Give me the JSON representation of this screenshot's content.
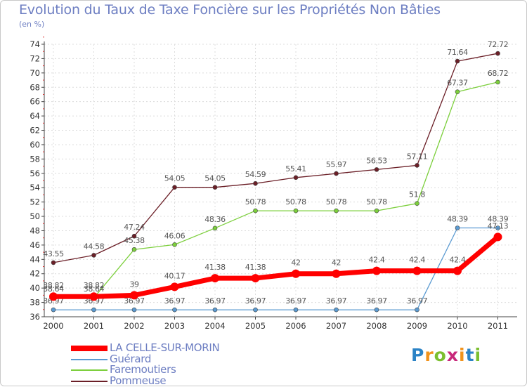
{
  "chart_data": {
    "type": "line",
    "title": "Evolution du Taux de Taxe Foncière sur les Propriétés Non Bâties",
    "subtitle": "(en %)",
    "xlabel": "",
    "ylabel": "",
    "ylim": [
      36,
      74
    ],
    "yticks": [
      36,
      38,
      40,
      42,
      44,
      46,
      48,
      50,
      52,
      54,
      56,
      58,
      60,
      62,
      64,
      66,
      68,
      70,
      72,
      74
    ],
    "categories": [
      "2000",
      "2001",
      "2002",
      "2003",
      "2004",
      "2005",
      "2006",
      "2007",
      "2008",
      "2009",
      "2010",
      "2011"
    ],
    "grid": true,
    "series": [
      {
        "name": "Pommeuse",
        "color": "#6b1f27",
        "values": [
          43.55,
          44.58,
          47.24,
          54.05,
          54.05,
          54.59,
          55.41,
          55.97,
          56.53,
          57.11,
          71.64,
          72.72
        ],
        "labels": [
          "43.55",
          "44.58",
          "47.24",
          "54.05",
          "54.05",
          "54.59",
          "55.41",
          "55.97",
          "56.53",
          "57.11",
          "71.64",
          "72.72"
        ]
      },
      {
        "name": "Faremoutiers",
        "color": "#7ccf3c",
        "values": [
          38.64,
          38.64,
          45.38,
          46.06,
          48.36,
          50.78,
          50.78,
          50.78,
          50.78,
          51.8,
          67.37,
          68.72
        ],
        "labels": [
          "38.64",
          "38.64",
          "45.38",
          "46.06",
          "48.36",
          "50.78",
          "50.78",
          "50.78",
          "50.78",
          "51.8",
          "67.37",
          "68.72"
        ]
      },
      {
        "name": "Guérard",
        "color": "#5b9bd2",
        "values": [
          36.97,
          36.97,
          36.97,
          36.97,
          36.97,
          36.97,
          36.97,
          36.97,
          36.97,
          36.97,
          48.39,
          48.39
        ],
        "labels": [
          "36.97",
          "36.97",
          "36.97",
          "36.97",
          "36.97",
          "36.97",
          "36.97",
          "36.97",
          "36.97",
          "36.97",
          "48.39",
          "48.39"
        ]
      },
      {
        "name": "LA CELLE-SUR-MORIN",
        "color": "#ff0000",
        "values": [
          38.82,
          38.82,
          39,
          40.17,
          41.38,
          41.38,
          42,
          42,
          42.4,
          42.4,
          42.4,
          47.13
        ],
        "labels": [
          "38.82",
          "38.82",
          "39",
          "40.17",
          "41.38",
          "41.38",
          "42",
          "42",
          "42.4",
          "42.4",
          "42.4",
          "47.13"
        ]
      }
    ],
    "legend_order": [
      "LA CELLE-SUR-MORIN",
      "Guérard",
      "Faremoutiers",
      "Pommeuse"
    ],
    "legend_position": "bottom-left"
  },
  "brand": {
    "letters": [
      "P",
      "r",
      "o",
      "x",
      "i",
      "t",
      "i"
    ],
    "colors": [
      "#2b83c6",
      "#f1931c",
      "#7bbf2f",
      "#c8287a",
      "#f1931c",
      "#2b83c6",
      "#7bbf2f"
    ]
  }
}
